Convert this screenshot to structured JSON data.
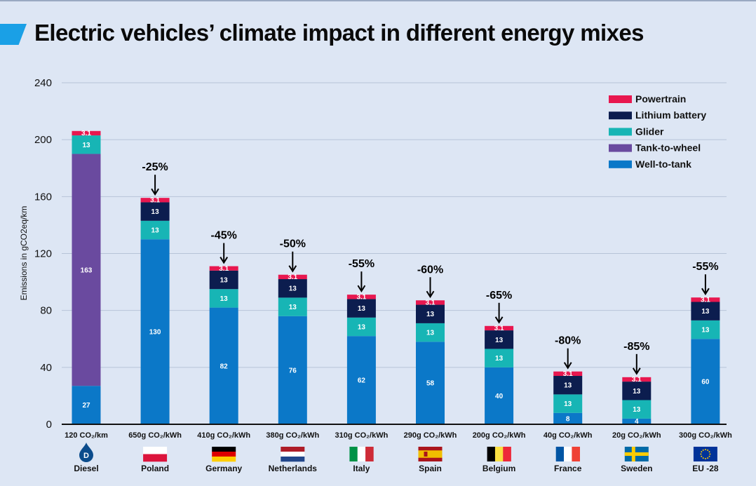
{
  "title": "Electric vehicles’ climate impact in different energy mixes",
  "colors": {
    "background": "#dde6f4",
    "title_stripe": "#1aa0e6",
    "Powertrain": "#e8174f",
    "Lithium battery": "#0c1d4f",
    "Glider": "#17b5b5",
    "Tank-to-wheel": "#6a4a9f",
    "Well-to-tank": "#0b78c8"
  },
  "chart_data": {
    "type": "bar",
    "stacked": true,
    "ylabel": "Emissions in gCO2eq/km",
    "ylim": [
      0,
      240
    ],
    "yticks": [
      0,
      40,
      80,
      120,
      160,
      200,
      240
    ],
    "grid": true,
    "legend_position": "top-right",
    "legend": [
      "Powertrain",
      "Lithium battery",
      "Glider",
      "Tank-to-wheel",
      "Well-to-tank"
    ],
    "stack_order": [
      "Well-to-tank",
      "Tank-to-wheel",
      "Glider",
      "Lithium battery",
      "Powertrain"
    ],
    "categories": [
      "120 CO₂/km",
      "650g CO₂/kWh",
      "410g CO₂/kWh",
      "380g CO₂/kWh",
      "310g CO₂/kWh",
      "290g CO₂/kWh",
      "200g CO₂/kWh",
      "40g CO₂/kWh",
      "20g CO₂/kWh",
      "300g CO₂/kWh"
    ],
    "countries": [
      "Diesel",
      "Poland",
      "Germany",
      "Netherlands",
      "Italy",
      "Spain",
      "Belgium",
      "France",
      "Sweden",
      "EU -28"
    ],
    "series": [
      {
        "name": "Well-to-tank",
        "values": [
          27,
          130,
          82,
          76,
          62,
          58,
          40,
          8,
          4,
          60
        ],
        "labels": [
          "27",
          "130",
          "82",
          "76",
          "62",
          "58",
          "40",
          "8",
          "4",
          "60"
        ]
      },
      {
        "name": "Tank-to-wheel",
        "values": [
          163,
          0,
          0,
          0,
          0,
          0,
          0,
          0,
          0,
          0
        ],
        "labels": [
          "163",
          "",
          "",
          "",
          "",
          "",
          "",
          "",
          "",
          ""
        ]
      },
      {
        "name": "Glider",
        "values": [
          13,
          13,
          13,
          13,
          13,
          13,
          13,
          13,
          13,
          13
        ],
        "labels": [
          "13",
          "13",
          "13",
          "13",
          "13",
          "13",
          "13",
          "13",
          "13",
          "13"
        ]
      },
      {
        "name": "Lithium battery",
        "values": [
          0,
          13,
          13,
          13,
          13,
          13,
          13,
          13,
          13,
          13
        ],
        "labels": [
          "",
          "13",
          "13",
          "13",
          "13",
          "13",
          "13",
          "13",
          "13",
          "13"
        ]
      },
      {
        "name": "Powertrain",
        "values": [
          3.1,
          3.1,
          3.1,
          3.1,
          3.1,
          3.1,
          3.1,
          3.1,
          3.1,
          3.1
        ],
        "labels": [
          "3.1",
          "3.1",
          "3.1",
          "3.1",
          "3.1",
          "3.1",
          "3.1",
          "3.1",
          "3.1",
          "3.1"
        ]
      }
    ],
    "annotations": [
      "",
      "-25%",
      "-45%",
      "-50%",
      "-55%",
      "-60%",
      "-65%",
      "-80%",
      "-85%",
      "-55%"
    ],
    "country_icons": [
      "diesel-drop-icon",
      "poland-flag-icon",
      "germany-flag-icon",
      "netherlands-flag-icon",
      "italy-flag-icon",
      "spain-flag-icon",
      "belgium-flag-icon",
      "france-flag-icon",
      "sweden-flag-icon",
      "eu-flag-icon"
    ],
    "diesel_icon_letter": "D"
  }
}
